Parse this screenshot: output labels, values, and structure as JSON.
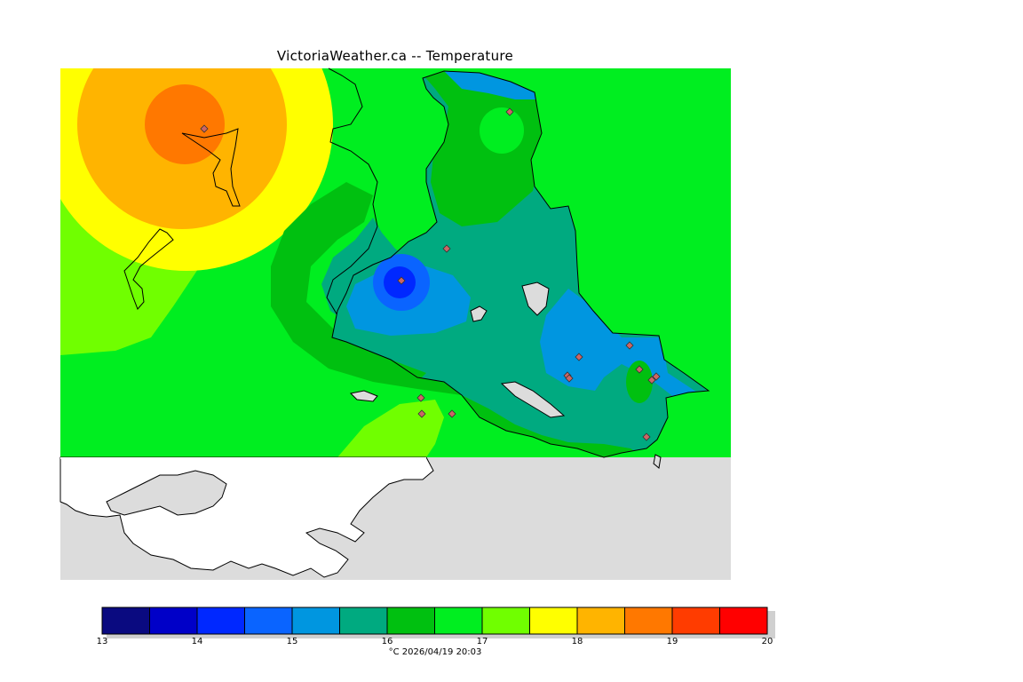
{
  "title": "VictoriaWeather.ca -- Temperature",
  "colorbar": {
    "ticks": [
      "13",
      "14",
      "15",
      "16",
      "17",
      "18",
      "19",
      "20"
    ],
    "colors": [
      "#0a0a80",
      "#0000c8",
      "#0028ff",
      "#0a64ff",
      "#0096e0",
      "#00aa80",
      "#00c010",
      "#00ee20",
      "#70ff00",
      "#ffff00",
      "#ffb400",
      "#ff7800",
      "#ff3c00",
      "#ff0000"
    ],
    "caption": "°C  2026/04/19 20:03"
  },
  "map": {
    "land_color": "#dcdcdc",
    "outer_land_color": "#ffffff",
    "station_color": "#cc6666",
    "hot_spot_value": 19,
    "cold_spot_value": 14
  }
}
